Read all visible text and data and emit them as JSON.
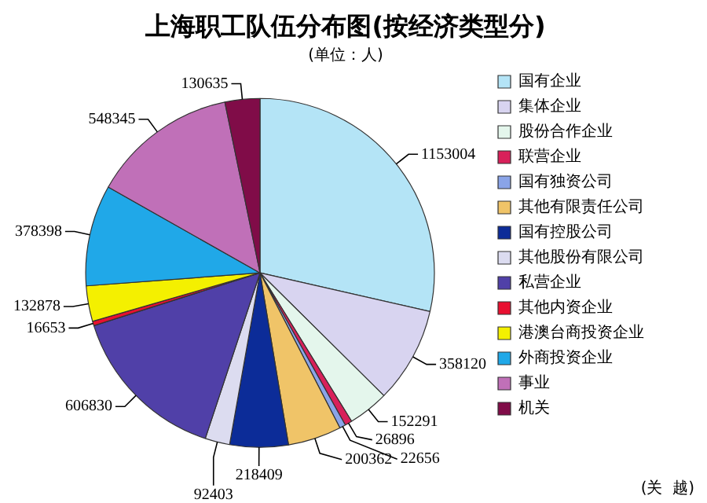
{
  "chart_data": {
    "type": "pie",
    "title": "上海职工队伍分布图(按经济类型分)",
    "subtitle": "(单位：人)",
    "categories": [
      "国有企业",
      "集体企业",
      "股份合作企业",
      "联营企业",
      "国有独资公司",
      "其他有限责任公司",
      "国有控股公司",
      "其他股份有限公司",
      "私营企业",
      "其他内资企业",
      "港澳台商投资企业",
      "外商投资企业",
      "事业",
      "机关"
    ],
    "values": [
      1153004,
      358120,
      152291,
      26896,
      22656,
      200362,
      218409,
      92403,
      606830,
      16653,
      132878,
      378398,
      548345,
      130635
    ],
    "colors": [
      "#b4e4f6",
      "#d8d4f0",
      "#e4f6ec",
      "#d8205a",
      "#8aa4e8",
      "#f0c468",
      "#0c2c98",
      "#dcdcf0",
      "#5040a8",
      "#e81030",
      "#f4f000",
      "#20a8e8",
      "#c070b8",
      "#800c48"
    ],
    "data_labels": true,
    "legend": "right",
    "annotations": [
      "(关  越)"
    ]
  }
}
